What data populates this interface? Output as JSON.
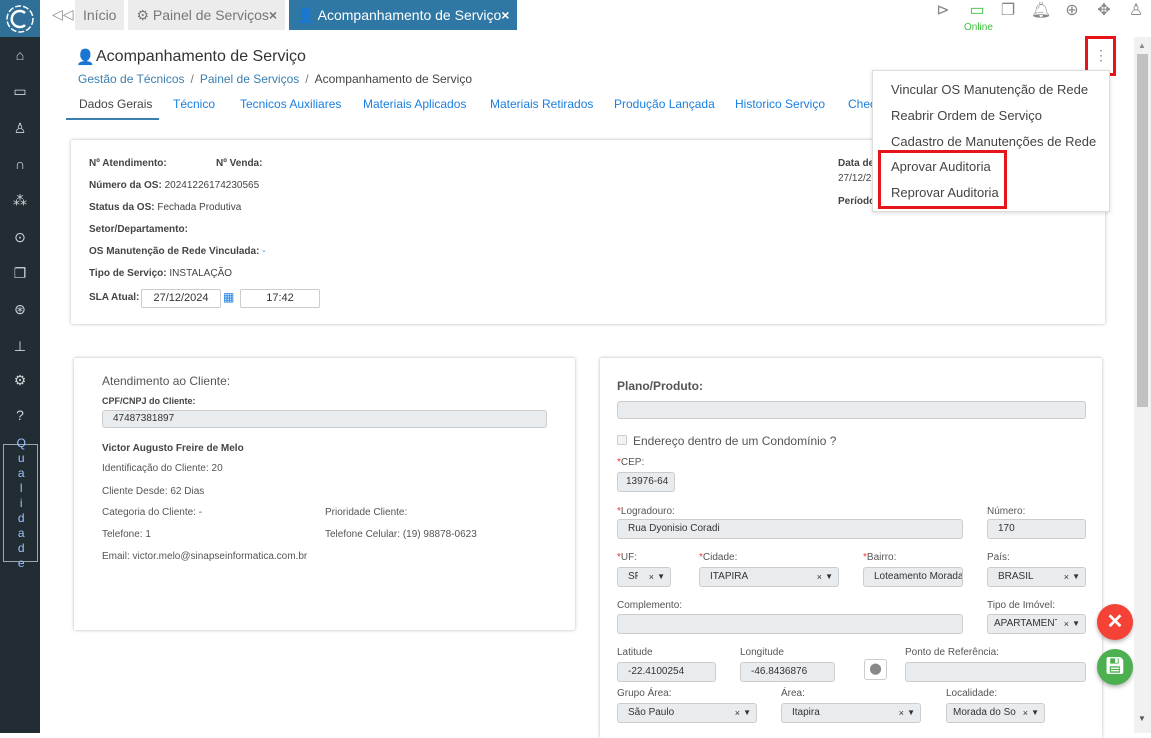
{
  "tabs": [
    {
      "label": "Início"
    },
    {
      "label": "Painel de Serviços",
      "close": "×"
    },
    {
      "label": "Acompanhamento de Serviço",
      "close": "×"
    }
  ],
  "status": {
    "online": "Online"
  },
  "page": {
    "title": "Acompanhamento de Serviço",
    "breadcrumb": [
      "Gestão de Técnicos",
      "/",
      "Painel de Serviços",
      "/",
      "Acompanhamento de Serviço"
    ]
  },
  "nav_tabs": [
    "Dados Gerais",
    "Técnico",
    "Tecnicos Auxiliares",
    "Materiais Aplicados",
    "Materiais Retirados",
    "Produção Lançada",
    "Historico Serviço",
    "Chec"
  ],
  "menu": {
    "items": [
      "Vincular OS Manutenção de Rede",
      "Reabrir Ordem de Serviço",
      "Cadastro de Manutenções de Rede",
      "Aprovar Auditoria",
      "Reprovar Auditoria"
    ]
  },
  "os": {
    "atendimento_label": "Nº Atendimento:",
    "venda_label": "Nº Venda:",
    "numero_label": "Número da OS:",
    "numero": "20241226174230565",
    "status_label": "Status da OS:",
    "status": "Fechada Produtiva",
    "setor_label": "Setor/Departamento:",
    "manut_label": "OS Manutenção de Rede Vinculada:",
    "manut": "-",
    "tipo_label": "Tipo de Serviço:",
    "tipo": "INSTALAÇÃO",
    "sla_label": "SLA Atual:",
    "sla_date": "27/12/2024",
    "sla_time": "17:42",
    "data_label": "Data de",
    "data_val": "27/12/2",
    "periodo_label": "Período"
  },
  "cliente": {
    "heading": "Atendimento ao Cliente:",
    "cpf_label": "CPF/CNPJ do Cliente:",
    "cpf": "47487381897",
    "nome": "Victor Augusto Freire de Melo",
    "identificacao": "Identificação do Cliente: 20",
    "desde": "Cliente Desde: 62 Dias",
    "categoria": "Categoria do Cliente: -",
    "prioridade": "Prioridade Cliente:",
    "telefone": "Telefone: 1",
    "celular": "Telefone Celular: (19) 98878-0623",
    "email": "Email: victor.melo@sinapseinformatica.com.br"
  },
  "endereco": {
    "plano_label": "Plano/Produto:",
    "plano": "",
    "condominio": "Endereço dentro de um Condomínio ?",
    "cep_label": "CEP:",
    "cep": "13976-64",
    "logradouro_label": "Logradouro:",
    "logradouro": "Rua Dyonisio Coradi",
    "numero_label": "Número:",
    "numero": "170",
    "uf_label": "UF:",
    "uf": "SP",
    "cidade_label": "Cidade:",
    "cidade": "ITAPIRA",
    "bairro_label": "Bairro:",
    "bairro": "Loteamento Morada",
    "pais_label": "País:",
    "pais": "BRASIL",
    "complemento_label": "Complemento:",
    "complemento": "",
    "tipo_imovel_label": "Tipo de Imóvel:",
    "tipo_imovel": "APARTAMENT",
    "latitude_label": "Latitude",
    "latitude": "-22.4100254",
    "longitude_label": "Longitude",
    "longitude": "-46.8436876",
    "referencia_label": "Ponto de Referência:",
    "referencia": "",
    "grupo_area_label": "Grupo Área:",
    "grupo_area": "São Paulo",
    "area_label": "Área:",
    "area": "Itapira",
    "localidade_label": "Localidade:",
    "localidade": "Morada do Sol"
  },
  "sidebar": {
    "qualidade": "Qualidade"
  },
  "colors": {
    "sidebar": "#212c33",
    "active_tab": "#2f77a4",
    "link": "#1a7fe0",
    "cancel": "#f44336",
    "save": "#4caf50",
    "highlight": "#e8141c"
  }
}
